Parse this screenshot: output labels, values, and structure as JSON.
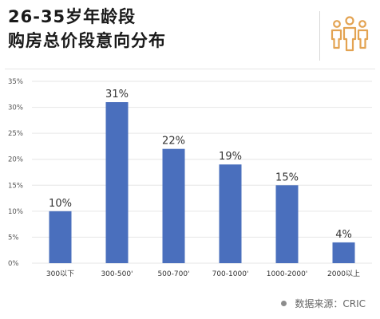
{
  "header": {
    "title_line1": "26-35岁年龄段",
    "title_line2": "购房总价段意向分布"
  },
  "source": "数据来源：CRIC",
  "colors": {
    "bar": "#4a6fbd",
    "accent_icon": "#e3a352",
    "grid": "#e6e6e6",
    "axis_text": "#555555"
  },
  "icons": {
    "header_icon": "people-group-icon"
  },
  "chart_data": {
    "type": "bar",
    "title": "26-35岁年龄段 购房总价段意向分布",
    "categories": [
      "300以下",
      "300-500'",
      "500-700'",
      "700-1000'",
      "1000-2000'",
      "2000以上"
    ],
    "values": [
      10,
      31,
      22,
      19,
      15,
      4
    ],
    "value_labels": [
      "10%",
      "31%",
      "22%",
      "19%",
      "15%",
      "4%"
    ],
    "ylim": [
      0,
      35
    ],
    "yticks": [
      0,
      5,
      10,
      15,
      20,
      25,
      30,
      35
    ],
    "ytick_labels": [
      "0%",
      "5%",
      "10%",
      "15%",
      "20%",
      "25%",
      "30%",
      "35%"
    ],
    "xlabel": "",
    "ylabel": "",
    "grid": true
  }
}
